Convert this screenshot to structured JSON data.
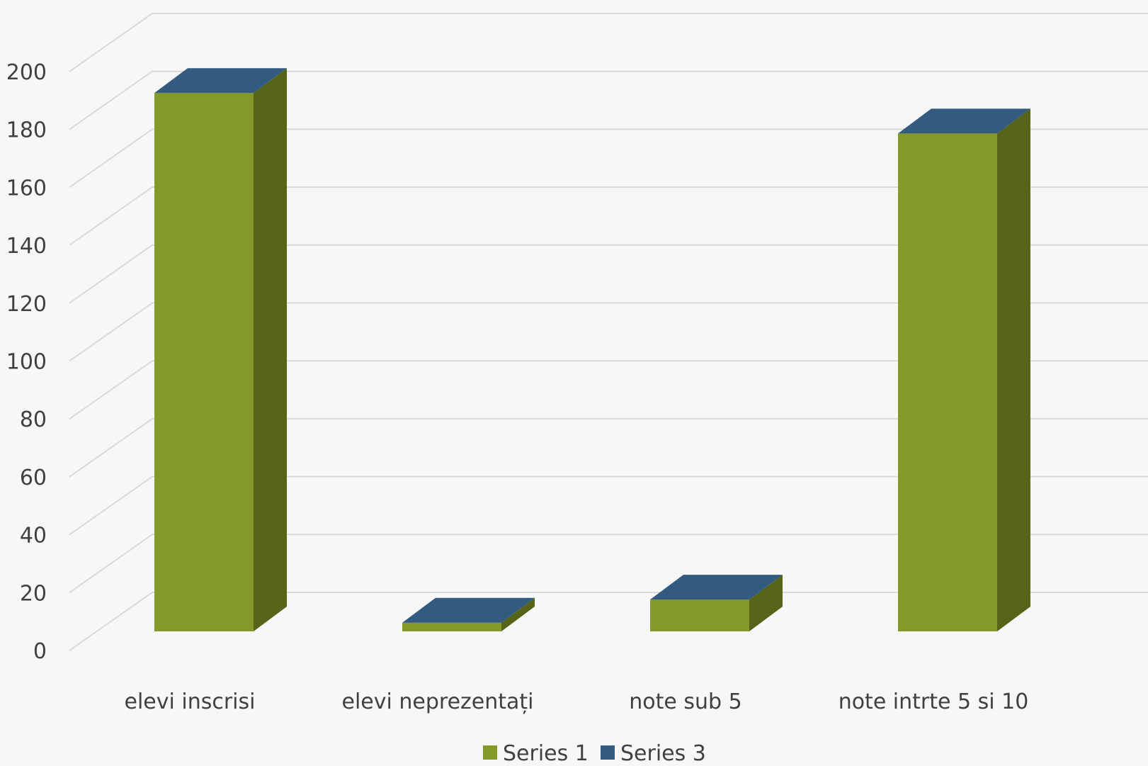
{
  "chart_data": {
    "type": "bar",
    "style": "3d-stacked-column",
    "categories": [
      "elevi inscrisi",
      "elevi neprezentați",
      "note sub 5",
      "note intrte 5 si 10"
    ],
    "series": [
      {
        "name": "Series 1",
        "values": [
          186,
          3,
          11,
          172
        ],
        "color": "#83992a",
        "side_color": "#556419"
      },
      {
        "name": "Series 3",
        "values": [
          0,
          0,
          0,
          0
        ],
        "color": "#335a80"
      }
    ],
    "ylim": [
      0,
      200
    ],
    "yticks": [
      0,
      20,
      40,
      60,
      80,
      100,
      120,
      140,
      160,
      180,
      200
    ],
    "grid": true,
    "legend_position": "bottom"
  }
}
